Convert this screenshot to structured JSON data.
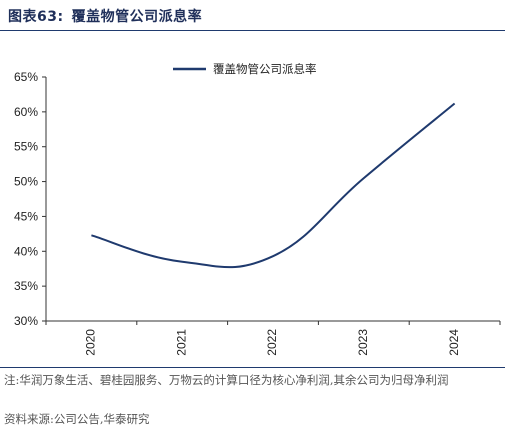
{
  "figure": {
    "number_label": "图表63:",
    "title": "覆盖物管公司派息率",
    "note": "注:华润万象生活、碧桂园服务、万物云的计算口径为核心净利润,其余公司为归母净利润",
    "source": "资料来源:公司公告,华泰研究"
  },
  "colors": {
    "line": "#1f3a6e",
    "rule": "#1f3a6e",
    "axis": "#333333"
  },
  "chart_data": {
    "type": "line",
    "title": "",
    "xlabel": "",
    "ylabel": "",
    "categories": [
      "2020",
      "2021",
      "2022",
      "2023",
      "2024"
    ],
    "series": [
      {
        "name": "覆盖物管公司派息率",
        "values": [
          0.423,
          0.385,
          0.393,
          0.505,
          0.612
        ]
      }
    ],
    "yticks": [
      "30%",
      "35%",
      "40%",
      "45%",
      "50%",
      "55%",
      "60%",
      "65%"
    ],
    "ylim": [
      0.3,
      0.65
    ],
    "grid": false,
    "legend_position": "top-center"
  }
}
